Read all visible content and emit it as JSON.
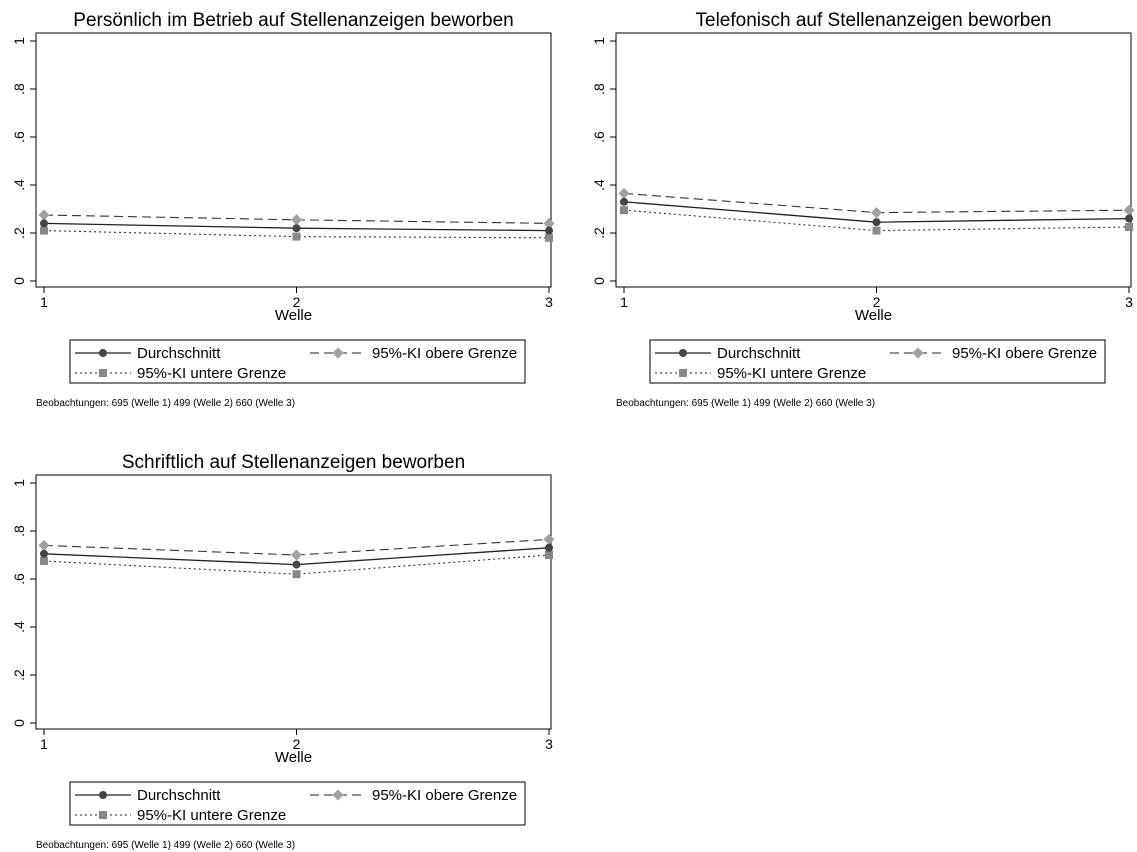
{
  "chart_data": [
    {
      "type": "line",
      "title": "Persönlich im Betrieb auf Stellenanzeigen beworben",
      "xlabel": "Welle",
      "ylabel": "",
      "x": [
        1,
        2,
        3
      ],
      "x_tick_labels": [
        "1",
        "2",
        "3"
      ],
      "ylim": [
        0,
        1
      ],
      "y_tick_labels": [
        "0",
        ".2",
        ".4",
        ".6",
        ".8",
        "1"
      ],
      "series": [
        {
          "name": "Durchschnitt",
          "values": [
            0.24,
            0.22,
            0.21
          ],
          "color": "#444444",
          "style": "solid",
          "marker": "circle"
        },
        {
          "name": "95%-KI obere Grenze",
          "values": [
            0.275,
            0.255,
            0.24
          ],
          "color": "#a0a0a0",
          "style": "dashed",
          "marker": "diamond"
        },
        {
          "name": "95%-KI untere Grenze",
          "values": [
            0.21,
            0.185,
            0.18
          ],
          "color": "#888888",
          "style": "dotted",
          "marker": "square"
        }
      ],
      "legend_position": "bottom",
      "note": "Beobachtungen: 695 (Welle 1) 499 (Welle 2) 660 (Welle 3)"
    },
    {
      "type": "line",
      "title": "Telefonisch auf Stellenanzeigen beworben",
      "xlabel": "Welle",
      "ylabel": "",
      "x": [
        1,
        2,
        3
      ],
      "x_tick_labels": [
        "1",
        "2",
        "3"
      ],
      "ylim": [
        0,
        1
      ],
      "y_tick_labels": [
        "0",
        ".2",
        ".4",
        ".6",
        ".8",
        "1"
      ],
      "series": [
        {
          "name": "Durchschnitt",
          "values": [
            0.33,
            0.245,
            0.26
          ],
          "color": "#444444",
          "style": "solid",
          "marker": "circle"
        },
        {
          "name": "95%-KI obere Grenze",
          "values": [
            0.365,
            0.285,
            0.295
          ],
          "color": "#a0a0a0",
          "style": "dashed",
          "marker": "diamond"
        },
        {
          "name": "95%-KI untere Grenze",
          "values": [
            0.295,
            0.21,
            0.225
          ],
          "color": "#888888",
          "style": "dotted",
          "marker": "square"
        }
      ],
      "legend_position": "bottom",
      "note": "Beobachtungen: 695 (Welle 1) 499 (Welle 2) 660 (Welle 3)"
    },
    {
      "type": "line",
      "title": "Schriftlich auf Stellenanzeigen beworben",
      "xlabel": "Welle",
      "ylabel": "",
      "x": [
        1,
        2,
        3
      ],
      "x_tick_labels": [
        "1",
        "2",
        "3"
      ],
      "ylim": [
        0,
        1
      ],
      "y_tick_labels": [
        "0",
        ".2",
        ".4",
        ".6",
        ".8",
        "1"
      ],
      "series": [
        {
          "name": "Durchschnitt",
          "values": [
            0.705,
            0.66,
            0.73
          ],
          "color": "#444444",
          "style": "solid",
          "marker": "circle"
        },
        {
          "name": "95%-KI obere Grenze",
          "values": [
            0.74,
            0.7,
            0.765
          ],
          "color": "#a0a0a0",
          "style": "dashed",
          "marker": "diamond"
        },
        {
          "name": "95%-KI untere Grenze",
          "values": [
            0.675,
            0.62,
            0.7
          ],
          "color": "#888888",
          "style": "dotted",
          "marker": "square"
        }
      ],
      "legend_position": "bottom",
      "note": "Beobachtungen: 695 (Welle 1) 499 (Welle 2) 660 (Welle 3)"
    }
  ]
}
